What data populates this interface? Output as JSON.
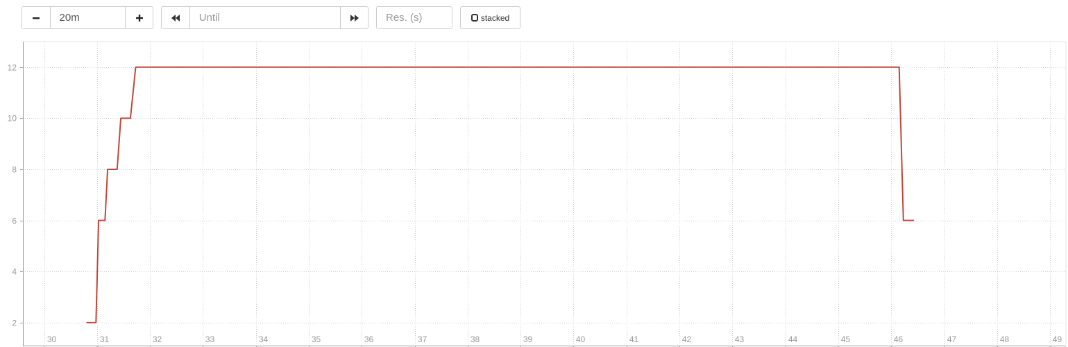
{
  "controls": {
    "range_minus_icon": "minus-icon",
    "range_value": "20m",
    "range_plus_icon": "plus-icon",
    "until_back_icon": "rewind-icon",
    "until_placeholder": "Until",
    "until_forward_icon": "fast-forward-icon",
    "resolution_placeholder": "Res. (s)",
    "stacked_label": "stacked"
  },
  "colors": {
    "series": "#c2473a",
    "grid": "#cccccc",
    "axis": "#999999",
    "tick_text": "#999999"
  },
  "chart_data": {
    "type": "line",
    "title": "",
    "xlabel": "",
    "ylabel": "",
    "xlim": [
      29.6,
      49.3
    ],
    "ylim": [
      1.1,
      13
    ],
    "grid": true,
    "legend": "none",
    "x_ticks": [
      30,
      31,
      32,
      33,
      34,
      35,
      36,
      37,
      38,
      39,
      40,
      41,
      42,
      43,
      44,
      45,
      46,
      47,
      48,
      49
    ],
    "y_ticks": [
      2,
      4,
      6,
      8,
      10,
      12
    ],
    "series": [
      {
        "color": "#c2473a",
        "points": [
          [
            30.8,
            2
          ],
          [
            30.98,
            2
          ],
          [
            31.03,
            6
          ],
          [
            31.15,
            6
          ],
          [
            31.2,
            8
          ],
          [
            31.38,
            8
          ],
          [
            31.45,
            10
          ],
          [
            31.63,
            10
          ],
          [
            31.73,
            12
          ],
          [
            46.15,
            12
          ],
          [
            46.23,
            6
          ],
          [
            46.43,
            6
          ]
        ]
      }
    ]
  }
}
